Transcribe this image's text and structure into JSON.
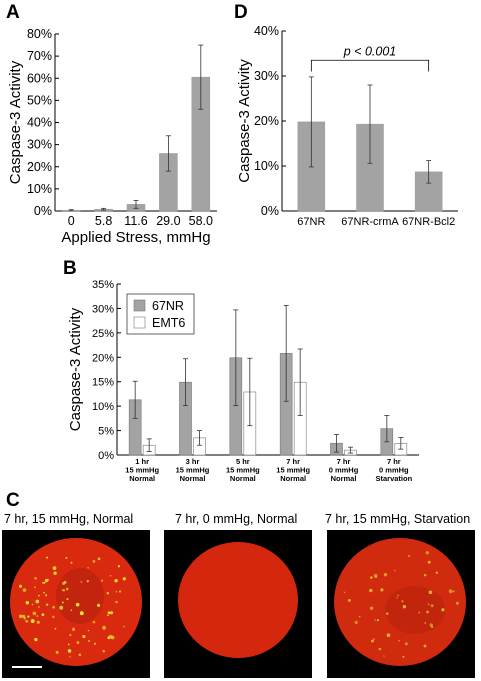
{
  "panels": {
    "A": "A",
    "B": "B",
    "C": "C",
    "D": "D"
  },
  "chart_data": [
    {
      "panel": "A",
      "type": "bar",
      "xlabel": "Applied Stress, mmHg",
      "ylabel": "Caspase-3 Activity",
      "categories": [
        "0",
        "5.8",
        "11.6",
        "29.0",
        "58.0"
      ],
      "values": [
        0.3,
        0.8,
        3.0,
        26.0,
        60.5
      ],
      "errors": [
        0.3,
        0.4,
        1.8,
        8.0,
        14.5
      ],
      "ylim": [
        0,
        80
      ],
      "yticks": [
        "0%",
        "10%",
        "20%",
        "30%",
        "40%",
        "50%",
        "60%",
        "70%",
        "80%"
      ],
      "bar_color": "#a3a3a3"
    },
    {
      "panel": "D",
      "type": "bar",
      "xlabel": "",
      "ylabel": "Caspase-3 Activity",
      "categories": [
        "67NR",
        "67NR-crmA",
        "67NR-Bcl2"
      ],
      "values": [
        19.8,
        19.3,
        8.7
      ],
      "errors": [
        10.0,
        8.7,
        2.5
      ],
      "ylim": [
        0,
        40
      ],
      "yticks": [
        "0%",
        "10%",
        "20%",
        "30%",
        "40%"
      ],
      "annotation": "p < 0.001",
      "bar_color": "#a3a3a3"
    },
    {
      "panel": "B",
      "type": "bar",
      "xlabel": "",
      "ylabel": "Caspase-3 Activity",
      "categories": [
        [
          "1 hr",
          "15 mmHg",
          "Normal"
        ],
        [
          "3 hr",
          "15 mmHg",
          "Normal"
        ],
        [
          "5 hr",
          "15 mmHg",
          "Normal"
        ],
        [
          "7 hr",
          "15 mmHg",
          "Normal"
        ],
        [
          "7 hr",
          "0 mmHg",
          "Normal"
        ],
        [
          "7 hr",
          "0 mmHg",
          "Starvation"
        ]
      ],
      "series": [
        {
          "name": "67NR",
          "values": [
            11.3,
            14.9,
            19.9,
            20.8,
            2.4,
            5.4
          ],
          "errors": [
            3.8,
            4.8,
            9.8,
            9.8,
            1.8,
            2.7
          ],
          "color": "#a3a3a3"
        },
        {
          "name": "EMT6",
          "values": [
            2.0,
            3.5,
            12.9,
            14.9,
            1.0,
            2.4
          ],
          "errors": [
            1.3,
            1.5,
            6.9,
            6.8,
            0.6,
            1.2
          ],
          "color": "#ffffff"
        }
      ],
      "ylim": [
        0,
        35
      ],
      "yticks": [
        "0%",
        "5%",
        "10%",
        "15%",
        "20%",
        "25%",
        "30%",
        "35%"
      ],
      "legend": "top-left"
    }
  ],
  "micrographs": [
    {
      "caption": "7 hr, 15 mmHg, Normal",
      "bg": "#d9290f",
      "spot": "#e4e830",
      "density": "high",
      "scale_bar": true
    },
    {
      "caption": "7 hr, 0 mmHg, Normal",
      "bg": "#d4270e",
      "spot": "#e4e830",
      "density": "none",
      "scale_bar": false
    },
    {
      "caption": "7 hr, 15 mmHg, Starvation",
      "bg": "#d02a0f",
      "spot": "#e0c030",
      "density": "medium",
      "scale_bar": false
    }
  ]
}
